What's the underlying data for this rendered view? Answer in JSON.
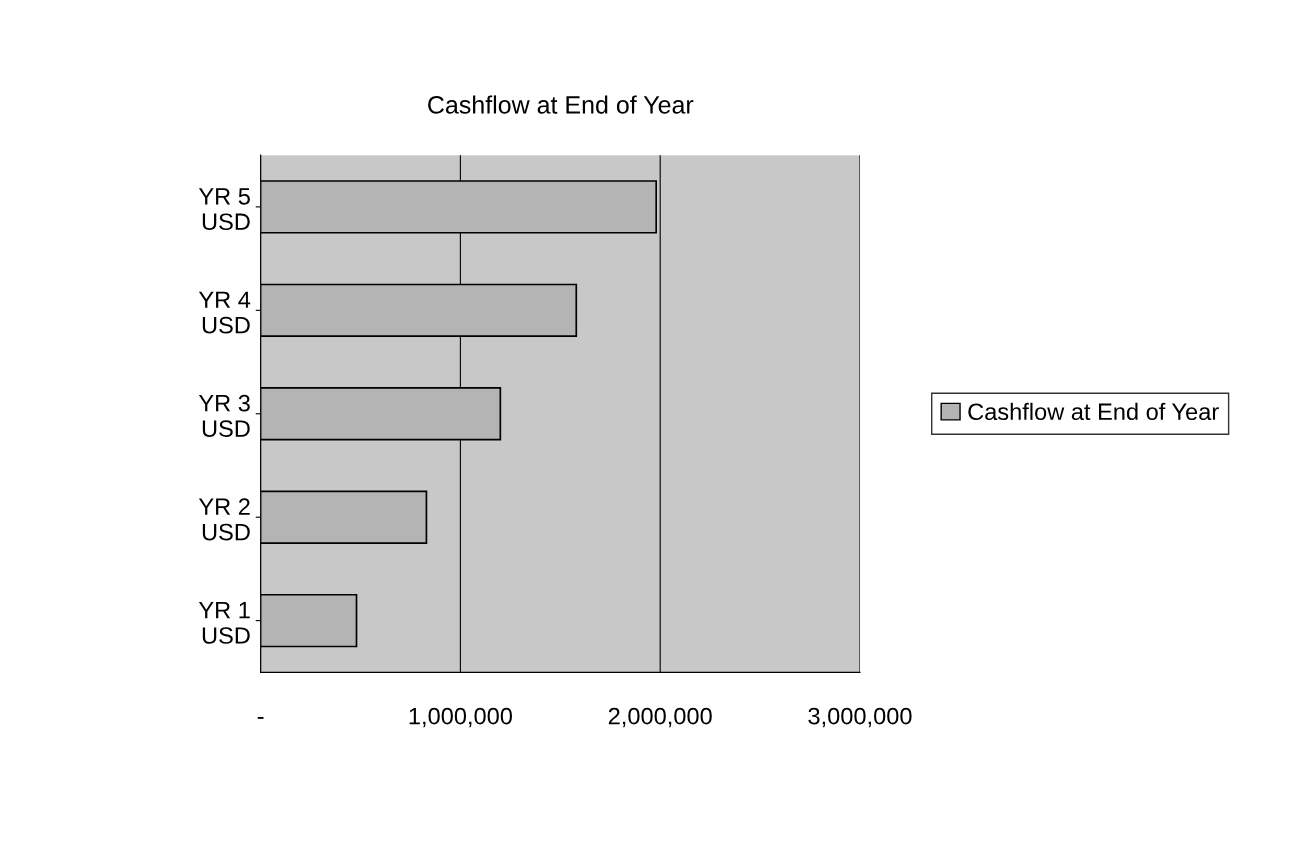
{
  "chart_data": {
    "type": "bar",
    "orientation": "horizontal",
    "title": "Cashflow at End of Year",
    "categories": [
      "YR 5\nUSD",
      "YR 4\nUSD",
      "YR 3\nUSD",
      "YR 2\nUSD",
      "YR 1\nUSD"
    ],
    "series": [
      {
        "name": "Cashflow at End of Year",
        "color": "#b4b4b4",
        "values": [
          1980000,
          1580000,
          1200000,
          830000,
          480000
        ]
      }
    ],
    "xlim": [
      0,
      3000000
    ],
    "xticks": [
      {
        "value": 0,
        "label": "-"
      },
      {
        "value": 1000000,
        "label": "1,000,000"
      },
      {
        "value": 2000000,
        "label": "2,000,000"
      },
      {
        "value": 3000000,
        "label": "3,000,000"
      }
    ],
    "grid": "x",
    "legend": "right"
  }
}
